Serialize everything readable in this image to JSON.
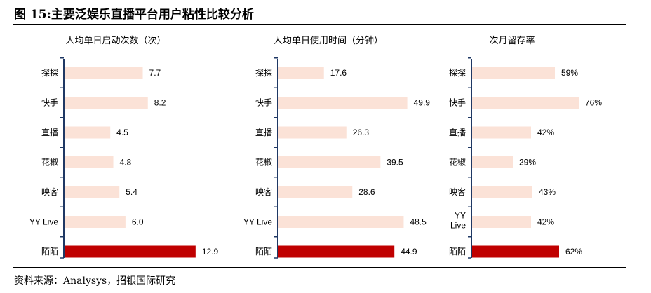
{
  "figure": {
    "title": "图 15:主要泛娱乐直播平台用户粘性比较分析",
    "source": "资料来源：Analysys，招银国际研究"
  },
  "colors": {
    "bar": "#fbe2d7",
    "highlight": "#c00000",
    "axis": "#1f3864"
  },
  "chart_data": [
    {
      "type": "bar",
      "orientation": "horizontal",
      "title": "人均单日启动次数（次）",
      "categories": [
        "探探",
        "快手",
        "一直播",
        "花椒",
        "映客",
        "YY Live",
        "陌陌"
      ],
      "values": [
        7.7,
        8.2,
        4.5,
        4.8,
        5.4,
        6.0,
        12.9
      ],
      "value_labels": [
        "7.7",
        "8.2",
        "4.5",
        "4.8",
        "5.4",
        "6.0",
        "12.9"
      ],
      "highlight_category": "陌陌",
      "xlim": [
        0,
        14.5
      ]
    },
    {
      "type": "bar",
      "orientation": "horizontal",
      "title": "人均单日使用时间（分钟）",
      "categories": [
        "探探",
        "快手",
        "一直播",
        "花椒",
        "映客",
        "YY Live",
        "陌陌"
      ],
      "values": [
        17.6,
        49.9,
        26.3,
        39.5,
        28.6,
        48.5,
        44.9
      ],
      "value_labels": [
        "17.6",
        "49.9",
        "26.3",
        "39.5",
        "28.6",
        "48.5",
        "44.9"
      ],
      "highlight_category": "陌陌",
      "xlim": [
        0,
        53
      ]
    },
    {
      "type": "bar",
      "orientation": "horizontal",
      "title": "次月留存率",
      "categories": [
        "探探",
        "快手",
        "一直播",
        "花椒",
        "映客",
        "YY Live",
        "陌陌"
      ],
      "values": [
        59,
        76,
        42,
        29,
        43,
        42,
        62
      ],
      "value_labels": [
        "59%",
        "76%",
        "42%",
        "29%",
        "43%",
        "42%",
        "62%"
      ],
      "highlight_category": "陌陌",
      "xlim": [
        0,
        80
      ]
    }
  ]
}
